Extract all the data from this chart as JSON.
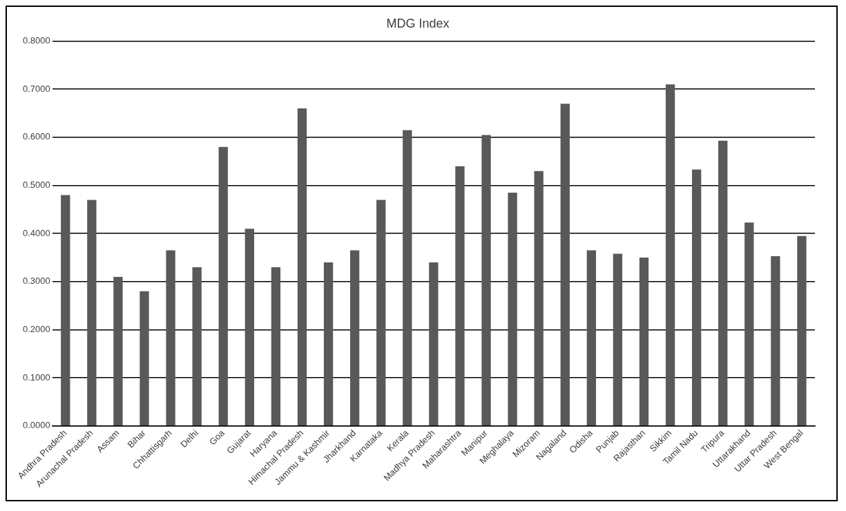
{
  "chart_data": {
    "type": "bar",
    "title": "MDG Index",
    "categories": [
      "Andhra Pradesh",
      "Arunachal Pradesh",
      "Assam",
      "Bihar",
      "Chhattisgarh",
      "Delhi",
      "Goa",
      "Gujarat",
      "Haryana",
      "Himachal Pradesh",
      "Jammu & Kashmir",
      "Jharkhand",
      "Karnataka",
      "Kerala",
      "Madhya Pradesh",
      "Maharashtra",
      "Manipur",
      "Meghalaya",
      "Mizoram",
      "Nagaland",
      "Odisha",
      "Punjab",
      "Rajasthan",
      "Sikkim",
      "Tamil Nadu",
      "Tripura",
      "Uttarakhand",
      "Uttar Pradesh",
      "West Bengal"
    ],
    "values": [
      0.48,
      0.47,
      0.31,
      0.28,
      0.365,
      0.33,
      0.58,
      0.41,
      0.33,
      0.66,
      0.34,
      0.365,
      0.47,
      0.615,
      0.34,
      0.54,
      0.605,
      0.485,
      0.53,
      0.67,
      0.365,
      0.358,
      0.35,
      0.71,
      0.533,
      0.593,
      0.423,
      0.353,
      0.395
    ],
    "color": "#595959",
    "ylim": [
      0,
      0.8
    ],
    "yticks": [
      {
        "value": 0,
        "label": "0.0000"
      },
      {
        "value": 0.1,
        "label": "0.1000"
      },
      {
        "value": 0.2,
        "label": "0.2000"
      },
      {
        "value": 0.3,
        "label": "0.3000"
      },
      {
        "value": 0.4,
        "label": "0.4000"
      },
      {
        "value": 0.5,
        "label": "0.5000"
      },
      {
        "value": 0.6,
        "label": "0.6000"
      },
      {
        "value": 0.7,
        "label": "0.7000"
      },
      {
        "value": 0.8,
        "label": "0.8000"
      }
    ],
    "grid": "y",
    "legend": false
  }
}
